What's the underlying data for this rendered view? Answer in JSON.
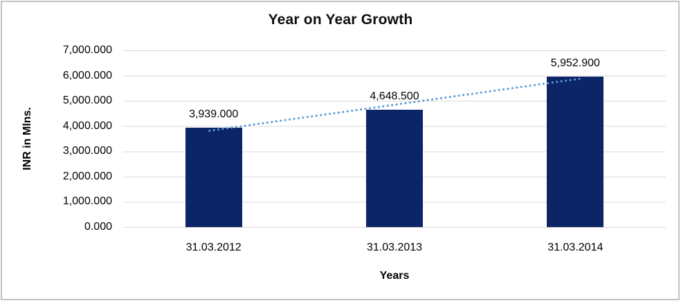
{
  "chart_data": {
    "type": "bar",
    "title": "Year on Year Growth",
    "xlabel": "Years",
    "ylabel": "INR in Mlns.",
    "categories": [
      "31.03.2012",
      "31.03.2013",
      "31.03.2014"
    ],
    "values": [
      3939.0,
      4648.5,
      5952.9
    ],
    "data_labels": [
      "3,939.000",
      "4,648.500",
      "5,952.900"
    ],
    "y_ticks": [
      "7,000.000",
      "6,000.000",
      "5,000.000",
      "4,000.000",
      "3,000.000",
      "2,000.000",
      "1,000.000",
      "0.000"
    ],
    "ylim": [
      0,
      7000
    ],
    "grid": "horizontal",
    "legend": "none",
    "bar_color": "#0c2566",
    "gridline_color": "#d9d9d9",
    "trendline": {
      "type": "linear",
      "style": "dotted",
      "color": "#5b9bd5"
    }
  }
}
